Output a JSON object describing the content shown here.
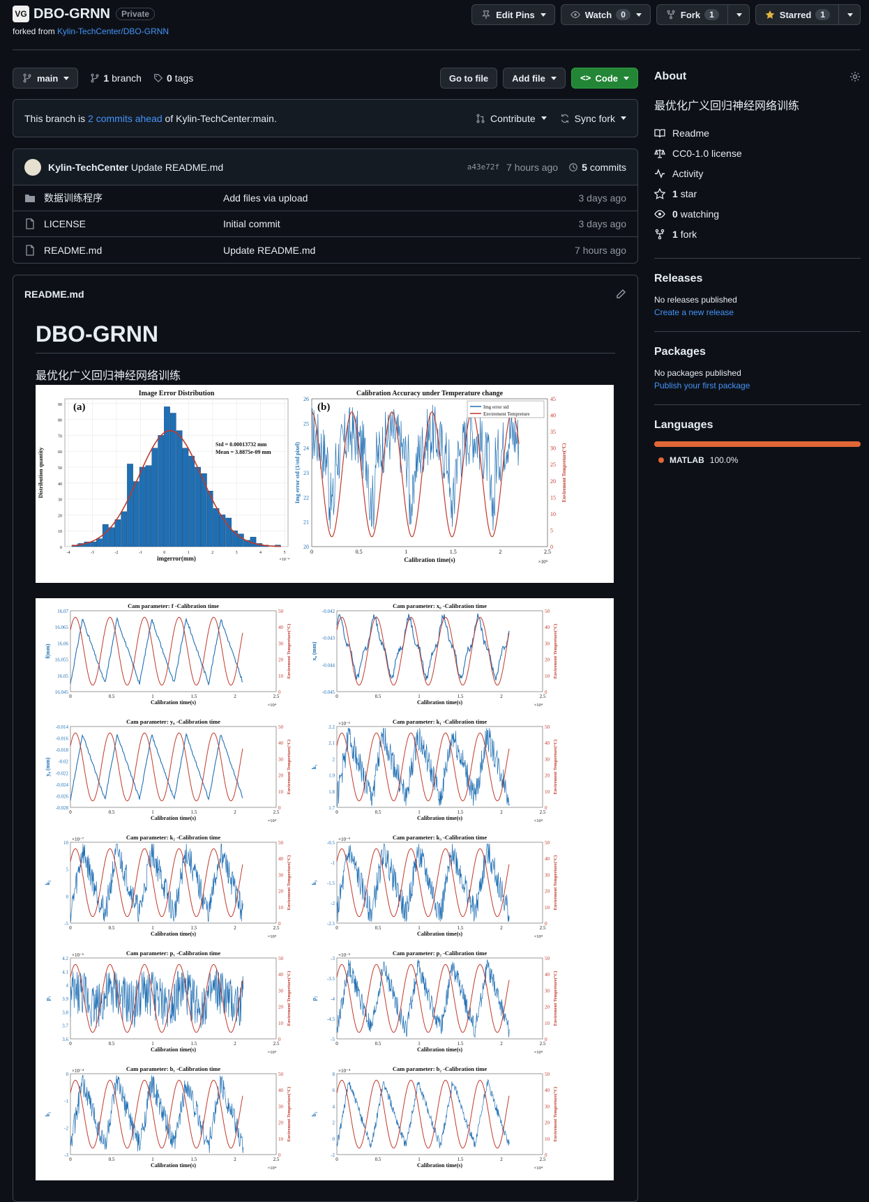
{
  "repo": {
    "name": "DBO-GRNN",
    "visibility": "Private",
    "forked_prefix": "forked from",
    "forked_from": "Kylin-TechCenter/DBO-GRNN"
  },
  "actions": {
    "edit_pins": "Edit Pins",
    "watch": "Watch",
    "watch_count": "0",
    "fork": "Fork",
    "fork_count": "1",
    "starred": "Starred",
    "star_count": "1"
  },
  "branch": {
    "current": "main",
    "branches_count": "1",
    "branches_label": "branch",
    "tags_count": "0",
    "tags_label": "tags",
    "go_to_file": "Go to file",
    "add_file": "Add file",
    "code": "Code"
  },
  "ahead": {
    "prefix": "This branch is",
    "link": "2 commits ahead",
    "suffix": "of Kylin-TechCenter:main.",
    "contribute": "Contribute",
    "sync_fork": "Sync fork"
  },
  "latest_commit": {
    "author": "Kylin-TechCenter",
    "message": "Update README.md",
    "sha": "a43e72f",
    "time": "7 hours ago",
    "commits_count": "5",
    "commits_label": "commits"
  },
  "files": [
    {
      "name": "数据训练程序",
      "type": "folder",
      "message": "Add files via upload",
      "time": "3 days ago"
    },
    {
      "name": "LICENSE",
      "type": "file",
      "message": "Initial commit",
      "time": "3 days ago"
    },
    {
      "name": "README.md",
      "type": "file",
      "message": "Update README.md",
      "time": "7 hours ago"
    }
  ],
  "readme": {
    "filename": "README.md",
    "title": "DBO-GRNN",
    "description": "最优化广义回归神经网络训练"
  },
  "about": {
    "heading": "About",
    "description": "最优化广义回归神经网络训练",
    "readme": "Readme",
    "license": "CC0-1.0 license",
    "activity": "Activity",
    "stars_count": "1",
    "stars_label": "star",
    "watching_count": "0",
    "watching_label": "watching",
    "forks_count": "1",
    "forks_label": "fork"
  },
  "releases": {
    "heading": "Releases",
    "empty": "No releases published",
    "link": "Create a new release"
  },
  "packages": {
    "heading": "Packages",
    "empty": "No packages published",
    "link": "Publish your first package"
  },
  "languages": {
    "heading": "Languages",
    "items": [
      {
        "name": "MATLAB",
        "percent": "100.0%",
        "color": "#e16737"
      }
    ]
  },
  "colors": {
    "bg": "#0d1117",
    "link": "#4493f8",
    "green_button": "#238636",
    "plot_blue": "#1f6fb4",
    "plot_red": "#c0392b"
  },
  "figure_a": {
    "title": "Image Error Distribution",
    "panel": "(a)",
    "xlabel": "imgerror(mm)",
    "ylabel": "Distribution quantity",
    "stat_std": "Std = 0.00013732 mm",
    "stat_mean": "Mean = 3.8875e-09 mm",
    "x_exp": "×10⁻⁴",
    "xticks": [
      "-4",
      "-3",
      "-2",
      "-1",
      "0",
      "1",
      "2",
      "3",
      "4",
      "5"
    ],
    "yticks": [
      "0",
      "10",
      "20",
      "30",
      "40",
      "50",
      "60",
      "70",
      "80",
      "90"
    ]
  },
  "figure_b": {
    "title": "Calibration Accuracy under Temperature change",
    "panel": "(b)",
    "xlabel": "Calibration time(s)",
    "ylabel_left": "Img error std (1/std pixel)",
    "ylabel_right": "Envirement Tempreture(°C)",
    "legend": [
      "Img error std",
      "Envirement Tempreture"
    ],
    "x_exp": "×10⁴",
    "xticks": [
      "0",
      "0.5",
      "1",
      "1.5",
      "2",
      "2.5"
    ],
    "yticks_left": [
      "20",
      "21",
      "22",
      "23",
      "24",
      "25",
      "26"
    ],
    "yticks_right": [
      "0",
      "5",
      "10",
      "15",
      "20",
      "25",
      "30",
      "35",
      "40",
      "45"
    ]
  },
  "param_plots": {
    "xlabel": "Calibration time(s)",
    "ylabel_right": "Envirement Tempreture(°C)",
    "x_exp": "×10⁴",
    "xticks": [
      "0",
      "0.5",
      "1",
      "1.5",
      "2",
      "2.5"
    ],
    "yticks_right": [
      "0",
      "10",
      "20",
      "30",
      "40",
      "50"
    ],
    "panels": [
      {
        "title": "Cam parameter: f -Calibration time",
        "ylabel": "f(mm)",
        "yexp": "",
        "yticks": [
          "16.045",
          "16.05",
          "16.055",
          "16.06",
          "16.065",
          "16.07"
        ]
      },
      {
        "title": "Cam parameter: x₀ -Calibration time",
        "ylabel": "x₀ (mm)",
        "yexp": "",
        "yticks": [
          "-0.045",
          "-0.044",
          "-0.043",
          "-0.042"
        ]
      },
      {
        "title": "Cam parameter: y₀ -Calibration time",
        "ylabel": "y₀ (mm)",
        "yexp": "",
        "yticks": [
          "-0.028",
          "-0.026",
          "-0.024",
          "-0.022",
          "-0.02",
          "-0.018",
          "-0.016",
          "-0.014"
        ]
      },
      {
        "title": "Cam parameter: k₁ -Calibration time",
        "ylabel": "k₁",
        "yexp": "×10⁻³",
        "yticks": [
          "1.7",
          "1.8",
          "1.9",
          "2",
          "2.1",
          "2.2"
        ]
      },
      {
        "title": "Cam parameter: k₂ -Calibration time",
        "ylabel": "k₂",
        "yexp": "×10⁻⁷",
        "yticks": [
          "-5",
          "0",
          "5",
          "10"
        ]
      },
      {
        "title": "Cam parameter: k₃ -Calibration time",
        "ylabel": "k₃",
        "yexp": "×10⁻⁹",
        "yticks": [
          "-2.5",
          "-2",
          "-1.5",
          "-1",
          "-0.5"
        ]
      },
      {
        "title": "Cam parameter: p₁ -Calibration time",
        "ylabel": "p₁",
        "yexp": "×10⁻⁵",
        "yticks": [
          "3.6",
          "3.7",
          "3.8",
          "3.9",
          "4",
          "4.1",
          "4.2"
        ]
      },
      {
        "title": "Cam parameter: p₂ -Calibration time",
        "ylabel": "p₂",
        "yexp": "×10⁻⁵",
        "yticks": [
          "-5",
          "-4.5",
          "-4",
          "-3.5",
          "-3"
        ]
      },
      {
        "title": "Cam parameter: b₁ -Calibration time",
        "ylabel": "b₁",
        "yexp": "×10⁻⁴",
        "yticks": [
          "-3",
          "-2",
          "-1",
          "0"
        ]
      },
      {
        "title": "Cam parameter: b₂ -Calibration time",
        "ylabel": "b₂",
        "yexp": "×10⁻⁴",
        "yticks": [
          "-2",
          "0",
          "2",
          "4",
          "6",
          "8"
        ]
      }
    ]
  }
}
